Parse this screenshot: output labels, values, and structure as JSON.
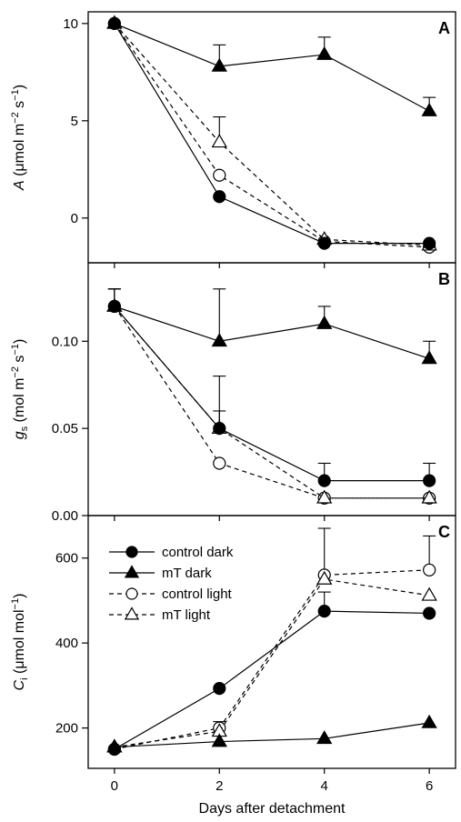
{
  "figure": {
    "xlabel": "Days after detachment",
    "legend": {
      "placement": "top-left of panel C",
      "entries": [
        "control dark",
        "mT dark",
        "control light",
        "mT light"
      ]
    }
  },
  "chart_data": [
    {
      "type": "line",
      "panel_label": "A",
      "ylabel": {
        "sym": "A",
        "sub": "",
        "unit_pre": "(μmol m",
        "sup1": "−2",
        "mid": " s",
        "sup2": "−1",
        "unit_post": ")"
      },
      "x": [
        0,
        2,
        4,
        6
      ],
      "xlim": [
        -0.5,
        6.5
      ],
      "ylim": [
        -2.3,
        10.6
      ],
      "yticks": [
        0,
        5,
        10
      ],
      "series": [
        {
          "name": "control dark",
          "values": [
            10,
            1.1,
            -1.3,
            -1.3
          ],
          "err": [
            0,
            0,
            0,
            0
          ],
          "marker": "circle",
          "fill": "filled",
          "dash": "solid"
        },
        {
          "name": "mT dark",
          "values": [
            10,
            7.8,
            8.4,
            5.5
          ],
          "err": [
            0,
            1.1,
            0.9,
            0.7
          ],
          "marker": "triangle",
          "fill": "filled",
          "dash": "solid"
        },
        {
          "name": "control light",
          "values": [
            10,
            2.2,
            -1.2,
            -1.5
          ],
          "err": [
            0,
            0,
            0,
            0
          ],
          "marker": "circle",
          "fill": "open",
          "dash": "dashed"
        },
        {
          "name": "mT light",
          "values": [
            10,
            3.9,
            -1.1,
            -1.4
          ],
          "err": [
            0,
            1.3,
            0,
            0
          ],
          "marker": "triangle",
          "fill": "open",
          "dash": "dashed"
        }
      ]
    },
    {
      "type": "line",
      "panel_label": "B",
      "ylabel": {
        "sym": "g",
        "sub": "s",
        "unit_pre": "(mol m",
        "sup1": "−2",
        "mid": " s",
        "sup2": "−1",
        "unit_post": ")"
      },
      "x": [
        0,
        2,
        4,
        6
      ],
      "xlim": [
        -0.5,
        6.5
      ],
      "ylim": [
        0,
        0.145
      ],
      "yticks": [
        0,
        0.05,
        0.1
      ],
      "ytick_labels": [
        "0.00",
        "0.05",
        "0.10"
      ],
      "series": [
        {
          "name": "control dark",
          "values": [
            0.12,
            0.05,
            0.02,
            0.02
          ],
          "err": [
            0.01,
            0.01,
            0.01,
            0.01
          ],
          "marker": "circle",
          "fill": "filled",
          "dash": "solid"
        },
        {
          "name": "mT dark",
          "values": [
            0.12,
            0.1,
            0.11,
            0.09
          ],
          "err": [
            0.01,
            0.03,
            0.01,
            0.01
          ],
          "marker": "triangle",
          "fill": "filled",
          "dash": "solid"
        },
        {
          "name": "control light",
          "values": [
            0.12,
            0.03,
            0.01,
            0.01
          ],
          "err": [
            0,
            0,
            0,
            0
          ],
          "marker": "circle",
          "fill": "open",
          "dash": "dashed"
        },
        {
          "name": "mT light",
          "values": [
            0.12,
            0.05,
            0.01,
            0.01
          ],
          "err": [
            0.01,
            0.03,
            0,
            0
          ],
          "marker": "triangle",
          "fill": "open",
          "dash": "dashed"
        }
      ]
    },
    {
      "type": "line",
      "panel_label": "C",
      "ylabel": {
        "sym": "C",
        "sub": "i",
        "unit_pre": "(μmol mol",
        "sup1": "−1",
        "mid": "",
        "sup2": "",
        "unit_post": ")"
      },
      "x": [
        0,
        2,
        4,
        6
      ],
      "xlim": [
        -0.5,
        6.5
      ],
      "ylim": [
        105,
        700
      ],
      "yticks": [
        200,
        400,
        600
      ],
      "series": [
        {
          "name": "control dark",
          "values": [
            150,
            293,
            475,
            470
          ],
          "err": [
            0,
            0,
            45,
            0
          ],
          "marker": "circle",
          "fill": "filled",
          "dash": "solid"
        },
        {
          "name": "mT dark",
          "values": [
            155,
            168,
            175,
            212
          ],
          "err": [
            0,
            0,
            0,
            0
          ],
          "marker": "triangle",
          "fill": "filled",
          "dash": "solid"
        },
        {
          "name": "control light",
          "values": [
            150,
            200,
            560,
            572
          ],
          "err": [
            0,
            15,
            110,
            80
          ],
          "marker": "circle",
          "fill": "open",
          "dash": "dashed"
        },
        {
          "name": "mT light",
          "values": [
            155,
            192,
            550,
            512
          ],
          "err": [
            0,
            0,
            0,
            0
          ],
          "marker": "triangle",
          "fill": "open",
          "dash": "dashed"
        }
      ]
    }
  ]
}
